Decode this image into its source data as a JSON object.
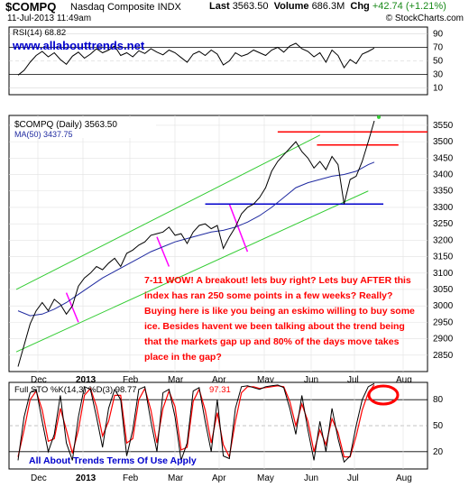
{
  "header": {
    "ticker": "$COMPQ",
    "exchange": "Nasdaq Composite INDX",
    "last_label": "Last",
    "last_value": "3563.50",
    "volume_label": "Volume",
    "volume_value": "686.3M",
    "chg_label": "Chg",
    "chg_value": "+42.74 (+1.21%)",
    "date": "11-Jul-2013 11:49am",
    "brand": "© StockCharts.com",
    "site": "www.allabouttrends.net"
  },
  "chart_data": [
    {
      "type": "line",
      "panel": "rsi",
      "legend": "RSI(14) 68.82",
      "ylim": [
        0,
        100
      ],
      "yticks": [
        10,
        30,
        50,
        70,
        90
      ],
      "series": [
        {
          "name": "RSI(14)",
          "x": [
            0,
            4,
            8,
            12,
            16,
            20,
            24,
            28,
            32,
            36,
            40,
            44,
            48,
            52,
            56,
            60,
            64,
            68,
            72,
            76,
            80,
            84,
            88,
            92,
            96,
            100,
            104,
            108,
            112,
            116,
            120,
            124,
            128,
            132,
            136,
            140,
            144,
            148,
            152,
            156,
            160,
            164,
            168,
            172,
            176,
            180,
            184,
            188,
            192,
            196,
            200,
            204,
            208,
            212,
            216,
            220,
            224,
            228,
            232,
            236
          ],
          "values": [
            29,
            36,
            48,
            58,
            64,
            56,
            62,
            52,
            45,
            57,
            63,
            54,
            60,
            68,
            62,
            66,
            72,
            58,
            62,
            56,
            65,
            61,
            68,
            63,
            59,
            66,
            62,
            55,
            48,
            60,
            64,
            58,
            66,
            60,
            44,
            50,
            62,
            57,
            60,
            66,
            62,
            58,
            66,
            70,
            63,
            72,
            76,
            68,
            64,
            56,
            62,
            48,
            66,
            58,
            40,
            52,
            46,
            60,
            64,
            69
          ]
        }
      ],
      "color": "#000000"
    },
    {
      "type": "line",
      "panel": "price",
      "legend": [
        "$COMPQ (Daily) 3563.50",
        "MA(50) 3437.75"
      ],
      "x_tick_labels": [
        "Dec",
        "2013",
        "Feb",
        "Mar",
        "Apr",
        "May",
        "Jun",
        "Jul",
        "Aug"
      ],
      "yticks": [
        2850,
        2900,
        2950,
        3000,
        3050,
        3100,
        3150,
        3200,
        3250,
        3300,
        3350,
        3400,
        3450,
        3500,
        3550
      ],
      "ylim": [
        2800,
        3580
      ],
      "series": [
        {
          "name": "$COMPQ (Daily)",
          "x": [
            0,
            4,
            8,
            12,
            16,
            20,
            24,
            28,
            32,
            36,
            40,
            44,
            48,
            52,
            56,
            60,
            64,
            68,
            72,
            76,
            80,
            84,
            88,
            92,
            96,
            100,
            104,
            108,
            112,
            116,
            120,
            124,
            128,
            132,
            136,
            140,
            144,
            148,
            152,
            156,
            160,
            164,
            168,
            172,
            176,
            180,
            184,
            188,
            192,
            196,
            200,
            204,
            208,
            212,
            216,
            220,
            224,
            228,
            232,
            236
          ],
          "values": [
            2815,
            2880,
            2945,
            2985,
            3010,
            2985,
            3020,
            3005,
            2975,
            3000,
            3060,
            3085,
            3100,
            3120,
            3110,
            3130,
            3145,
            3120,
            3160,
            3170,
            3185,
            3195,
            3215,
            3220,
            3225,
            3240,
            3215,
            3220,
            3190,
            3225,
            3245,
            3250,
            3235,
            3245,
            3175,
            3210,
            3240,
            3280,
            3300,
            3310,
            3330,
            3360,
            3410,
            3440,
            3460,
            3480,
            3500,
            3470,
            3450,
            3420,
            3440,
            3415,
            3455,
            3430,
            3310,
            3385,
            3395,
            3440,
            3500,
            3563.5
          ]
        },
        {
          "name": "MA(50)",
          "x": [
            0,
            8,
            16,
            24,
            32,
            40,
            48,
            56,
            64,
            72,
            80,
            88,
            96,
            104,
            112,
            120,
            128,
            136,
            144,
            152,
            160,
            168,
            176,
            184,
            192,
            200,
            208,
            216,
            224,
            232,
            236
          ],
          "values": [
            2985,
            2970,
            2975,
            2990,
            3010,
            3035,
            3060,
            3085,
            3105,
            3125,
            3145,
            3165,
            3180,
            3195,
            3205,
            3215,
            3225,
            3230,
            3240,
            3255,
            3275,
            3300,
            3330,
            3360,
            3375,
            3385,
            3395,
            3400,
            3410,
            3430,
            3437.75
          ]
        }
      ],
      "colors": {
        "price": "#000000",
        "ma": "#1f2aa0",
        "trend_channel": "#33cc33",
        "resistance": "#ff0000",
        "support": "#0000cc",
        "flags": "#ff00ff"
      },
      "annotation_lines": {
        "resistance_upper": 3530,
        "resistance_lower": 3490,
        "support": 3310
      },
      "annotation": "7-11 WOW! A breakout! lets buy right?  Lets buy AFTER this index has ran 250 some points in a few weeks?  Really? Buying here is like you being an eskimo willing to buy some ice. Besides havent we been talking about the trend being that the markets gap up and 80% of the days move takes place in the gap?"
    },
    {
      "type": "line",
      "panel": "stochastic",
      "legend": [
        "Full STO %K(14,3) %D(3) 98.77",
        "97.31"
      ],
      "x_tick_labels": [
        "Dec",
        "2013",
        "Feb",
        "Mar",
        "Apr",
        "May",
        "Jun",
        "Jul",
        "Aug"
      ],
      "yticks": [
        20,
        50,
        80
      ],
      "ylim": [
        0,
        100
      ],
      "series": [
        {
          "name": "%K",
          "x": [
            0,
            4,
            8,
            12,
            16,
            20,
            24,
            28,
            32,
            36,
            40,
            44,
            48,
            52,
            56,
            60,
            64,
            68,
            72,
            76,
            80,
            84,
            88,
            92,
            96,
            100,
            104,
            108,
            112,
            116,
            120,
            124,
            128,
            132,
            136,
            140,
            144,
            148,
            152,
            156,
            160,
            164,
            168,
            172,
            176,
            180,
            184,
            188,
            192,
            196,
            200,
            204,
            208,
            212,
            216,
            220,
            224,
            228,
            232,
            236
          ],
          "values": [
            10,
            60,
            88,
            92,
            55,
            20,
            40,
            85,
            30,
            10,
            60,
            95,
            92,
            60,
            25,
            70,
            92,
            80,
            15,
            45,
            92,
            95,
            55,
            20,
            88,
            92,
            60,
            10,
            30,
            90,
            94,
            55,
            20,
            80,
            15,
            12,
            70,
            95,
            96,
            94,
            92,
            95,
            96,
            97,
            94,
            70,
            40,
            85,
            45,
            10,
            55,
            20,
            70,
            35,
            8,
            15,
            50,
            80,
            95,
            98.77
          ]
        },
        {
          "name": "%D",
          "x": [
            0,
            4,
            8,
            12,
            16,
            20,
            24,
            28,
            32,
            36,
            40,
            44,
            48,
            52,
            56,
            60,
            64,
            68,
            72,
            76,
            80,
            84,
            88,
            92,
            96,
            100,
            104,
            108,
            112,
            116,
            120,
            124,
            128,
            132,
            136,
            140,
            144,
            148,
            152,
            156,
            160,
            164,
            168,
            172,
            176,
            180,
            184,
            188,
            192,
            196,
            200,
            204,
            208,
            212,
            216,
            220,
            224,
            228,
            232,
            236
          ],
          "values": [
            14,
            45,
            80,
            90,
            68,
            32,
            35,
            70,
            45,
            18,
            45,
            85,
            93,
            72,
            38,
            55,
            85,
            85,
            30,
            35,
            80,
            93,
            68,
            30,
            70,
            90,
            72,
            22,
            25,
            78,
            92,
            68,
            30,
            65,
            28,
            14,
            55,
            88,
            95,
            95,
            93,
            94,
            95,
            96,
            95,
            78,
            50,
            75,
            55,
            20,
            45,
            28,
            58,
            42,
            14,
            14,
            38,
            68,
            88,
            97.31
          ]
        }
      ],
      "colors": {
        "k": "#000000",
        "d": "#ff0000",
        "highlight_circle": "#ff0000"
      }
    }
  ],
  "footer": {
    "terms": "All About Trends Terms Of Use Apply"
  }
}
